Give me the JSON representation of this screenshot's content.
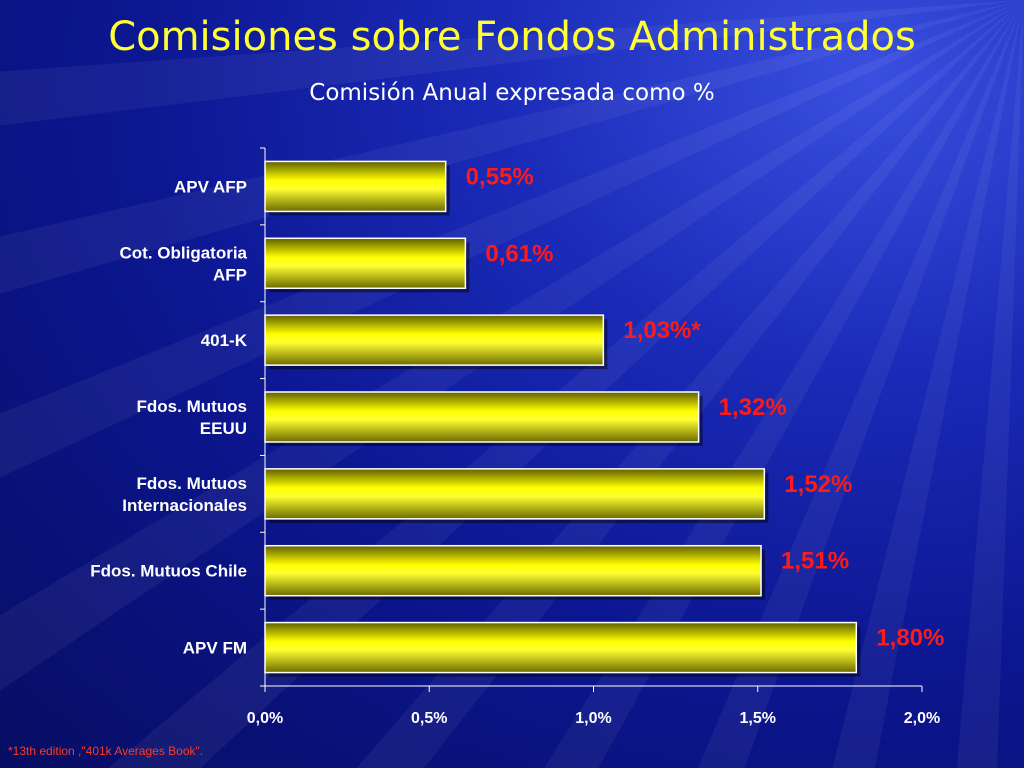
{
  "slide": {
    "title": "Comisiones sobre Fondos Administrados",
    "subtitle": "Comisión Anual expresada como %",
    "footnote": "*13th edition ,\"401k Averages Book\"."
  },
  "colors": {
    "bar_fill": "#ffff00",
    "bar_shadow": "#6b6b00",
    "value_label": "#ff1a1a",
    "axis_text": "#ffffff"
  },
  "chart_data": {
    "type": "bar",
    "orientation": "horizontal",
    "categories": [
      [
        "APV AFP"
      ],
      [
        "Cot. Obligatoria",
        "AFP"
      ],
      [
        "401-K"
      ],
      [
        "Fdos. Mutuos",
        "EEUU"
      ],
      [
        "Fdos. Mutuos",
        "Internacionales"
      ],
      [
        "Fdos. Mutuos Chile"
      ],
      [
        "APV FM"
      ]
    ],
    "values": [
      0.55,
      0.61,
      1.03,
      1.32,
      1.52,
      1.51,
      1.8
    ],
    "value_labels": [
      "0,55%",
      "0,61%",
      "1,03%*",
      "1,32%",
      "1,52%",
      "1,51%",
      "1,80%"
    ],
    "xlim": [
      0,
      2.0
    ],
    "xticks": [
      0,
      0.5,
      1.0,
      1.5,
      2.0
    ],
    "xtick_labels": [
      "0,0%",
      "0,5%",
      "1,0%",
      "1,5%",
      "2,0%"
    ],
    "grid": false,
    "legend": "none"
  }
}
